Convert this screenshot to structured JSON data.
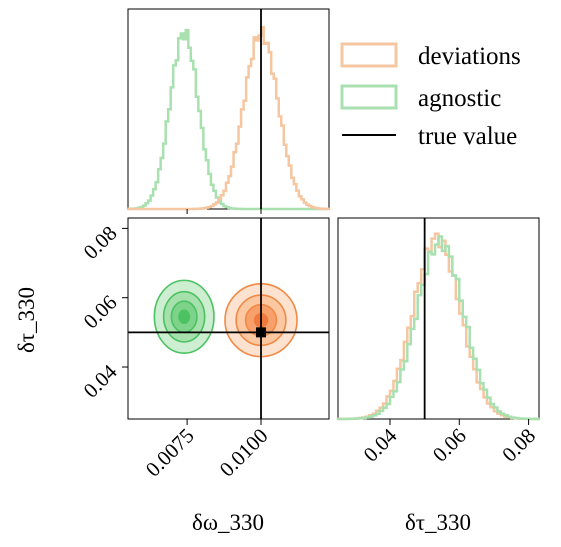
{
  "colors": {
    "deviations_line": "#f5c6a0",
    "deviations_fill_outer": "#fde3cf",
    "deviations_fill_mid": "#fbc8a2",
    "deviations_fill_inner": "#f7a06c",
    "deviations_core": "#f07a3e",
    "deviations_contour": "#f08a46",
    "agnostic_line": "#a9e0b0",
    "agnostic_fill_outer": "#cdeed1",
    "agnostic_fill_mid": "#a6e0ad",
    "agnostic_fill_inner": "#7dd389",
    "agnostic_core": "#4cc262",
    "agnostic_contour": "#4cc262",
    "truth": "#000000"
  },
  "chart_data": {
    "type": "corner",
    "parameters": [
      "δω_330",
      "δτ_330"
    ],
    "truth": {
      "domega_330": 0.01,
      "dtau_330": 0.05
    },
    "legend": {
      "position": "top-right",
      "entries": [
        {
          "name": "deviations",
          "style": "histogram",
          "color": "#f5c6a0"
        },
        {
          "name": "agnostic",
          "style": "histogram",
          "color": "#a9e0b0"
        },
        {
          "name": "true value",
          "style": "line",
          "color": "#000000"
        }
      ]
    },
    "domega_panel": {
      "xlim": [
        0.0055,
        0.0123
      ],
      "ticks": [
        0.0075,
        0.01
      ],
      "tick_labels": [
        "0.0075",
        "0.0100"
      ],
      "xlabel": "δω_330",
      "series": [
        {
          "name": "deviations",
          "mean": 0.01,
          "sigma": 0.00058
        },
        {
          "name": "agnostic",
          "mean": 0.0074,
          "sigma": 0.00048
        }
      ]
    },
    "dtau_panel": {
      "xlim": [
        0.025,
        0.083
      ],
      "ticks": [
        0.04,
        0.06,
        0.08
      ],
      "tick_labels": [
        "0.04",
        "0.06",
        "0.08"
      ],
      "xlabel": "δτ_330",
      "series": [
        {
          "name": "deviations",
          "mean": 0.0535,
          "sigma": 0.0068
        },
        {
          "name": "agnostic",
          "mean": 0.0545,
          "sigma": 0.0068
        }
      ]
    },
    "joint_panel": {
      "xlim": [
        0.0055,
        0.0123
      ],
      "ylim": [
        0.025,
        0.083
      ],
      "yticks": [
        0.04,
        0.06,
        0.08
      ],
      "ytick_labels": [
        "0.04",
        "0.06",
        "0.08"
      ],
      "ylabel": "δτ_330",
      "series": [
        {
          "name": "deviations",
          "center": [
            0.01,
            0.0535
          ],
          "sigma": [
            0.00058,
            0.005
          ]
        },
        {
          "name": "agnostic",
          "center": [
            0.0074,
            0.0545
          ],
          "sigma": [
            0.00048,
            0.005
          ]
        }
      ],
      "truth_marker": [
        0.01,
        0.05
      ]
    }
  }
}
